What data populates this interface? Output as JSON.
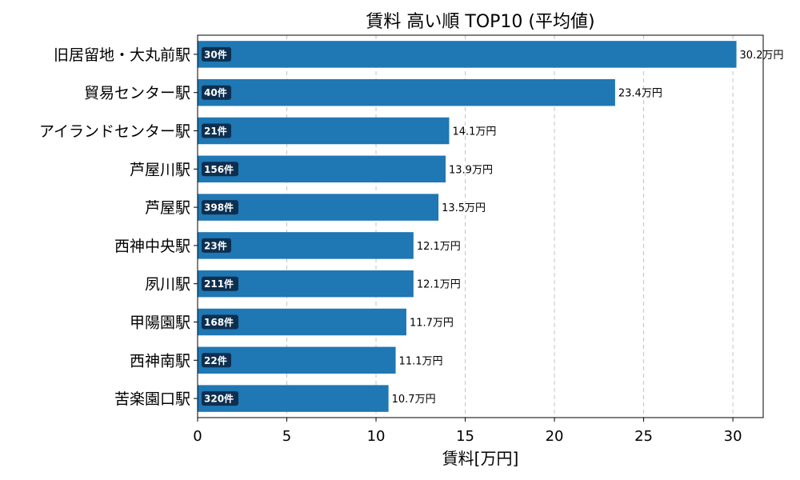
{
  "chart_data": {
    "type": "bar",
    "orientation": "horizontal",
    "title": "賃料 高い順 TOP10 (平均値)",
    "xlabel": "賃料[万円]",
    "ylabel": "",
    "xlim": [
      0,
      31.7
    ],
    "xticks": [
      0,
      5,
      10,
      15,
      20,
      25,
      30
    ],
    "grid": "x-dashed",
    "bar_color": "#1f77b4",
    "count_badge_color": "#0d2f4f",
    "categories": [
      "旧居留地・大丸前駅",
      "貿易センター駅",
      "アイランドセンター駅",
      "芦屋川駅",
      "芦屋駅",
      "西神中央駅",
      "夙川駅",
      "甲陽園駅",
      "西神南駅",
      "苦楽園口駅"
    ],
    "values": [
      30.2,
      23.4,
      14.1,
      13.9,
      13.5,
      12.1,
      12.1,
      11.7,
      11.1,
      10.7
    ],
    "value_labels": [
      "30.2万円",
      "23.4万円",
      "14.1万円",
      "13.9万円",
      "13.5万円",
      "12.1万円",
      "12.1万円",
      "11.7万円",
      "11.1万円",
      "10.7万円"
    ],
    "count_labels": [
      "30件",
      "40件",
      "21件",
      "156件",
      "398件",
      "23件",
      "211件",
      "168件",
      "22件",
      "320件"
    ]
  }
}
